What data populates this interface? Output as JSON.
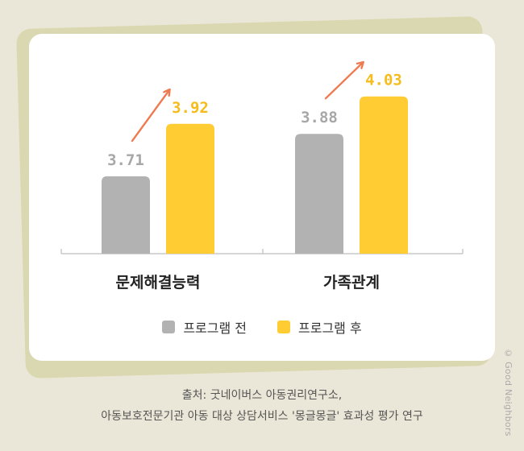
{
  "chart_data": {
    "type": "bar",
    "categories": [
      "문제해결능력",
      "가족관계"
    ],
    "series": [
      {
        "name": "프로그램 전",
        "values": [
          3.71,
          3.88
        ],
        "color": "#b2b2b2"
      },
      {
        "name": "프로그램 후",
        "values": [
          3.92,
          4.03
        ],
        "color": "#ffcc33"
      }
    ],
    "value_labels": [
      [
        "3.71",
        "3.88"
      ],
      [
        "3.92",
        "4.03"
      ]
    ],
    "arrow_color": "#f07a50",
    "label_colors": {
      "before": "#a7a7a7",
      "after": "#f5bc1c"
    },
    "title": "",
    "xlabel": "",
    "ylabel": "",
    "grid": false,
    "legend_position": "bottom"
  },
  "legend": {
    "before": "프로그램 전",
    "after": "프로그램 후"
  },
  "source": {
    "line1": "출처: 굿네이버스 아동권리연구소,",
    "line2": "아동보호전문기관 아동 대상 상담서비스 '몽글몽글' 효과성 평가 연구"
  },
  "watermark": "© Good Neighbors"
}
